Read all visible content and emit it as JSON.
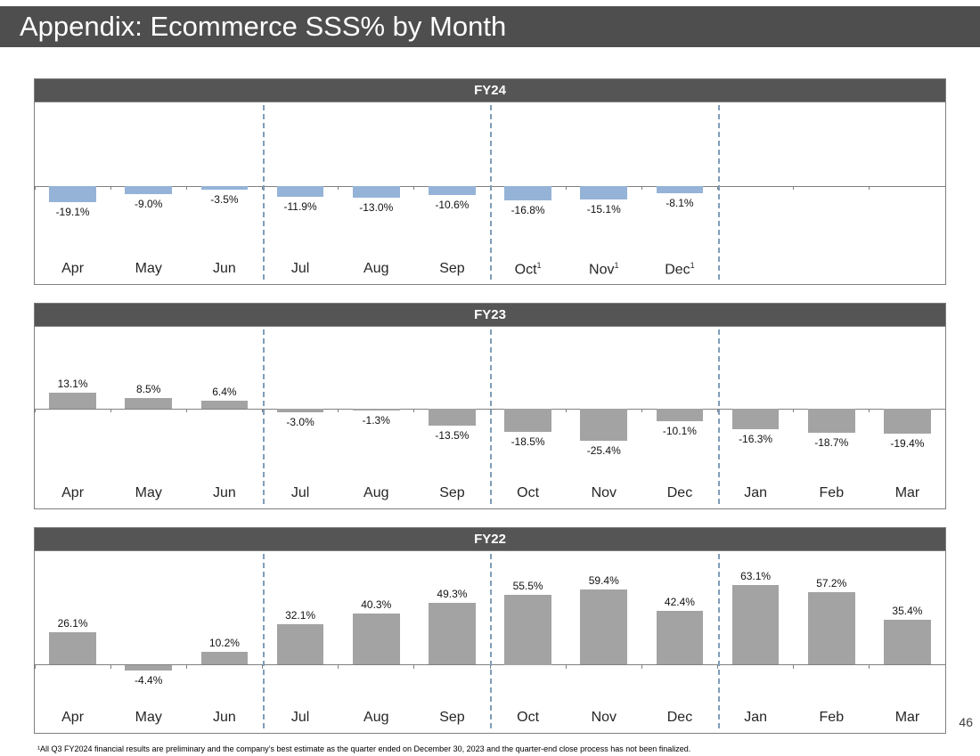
{
  "slide": {
    "title": "Appendix: Ecommerce SSS% by Month",
    "page_number": "46",
    "footnote": "¹All Q3 FY2024 financial results are preliminary and the company’s best estimate as the quarter ended on December 30, 2023 and the quarter-end close process has not been finalized."
  },
  "colors": {
    "header_bg": "#4E4E4E",
    "panel_title_bg": "#555555",
    "fy24_bar": "#95B3D7",
    "gray_bar": "#A3A3A3",
    "axis_line": "#808080",
    "quarter_separator": "#7F9DB9"
  },
  "chart_data": [
    {
      "type": "bar",
      "title": "FY24",
      "categories": [
        "Apr",
        "May",
        "Jun",
        "Jul",
        "Aug",
        "Sep",
        "Oct",
        "Nov",
        "Dec"
      ],
      "category_superscripts": [
        "",
        "",
        "",
        "",
        "",
        "",
        "1",
        "1",
        "1"
      ],
      "values": [
        -19.1,
        -9.0,
        -3.5,
        -11.9,
        -13.0,
        -10.6,
        -16.8,
        -15.1,
        -8.1
      ],
      "labels": [
        "-19.1%",
        "-9.0%",
        "-3.5%",
        "-11.9%",
        "-13.0%",
        "-10.6%",
        "-16.8%",
        "-15.1%",
        "-8.1%"
      ],
      "bar_color": "#95B3D7",
      "slots": 12,
      "ylim": [
        -80,
        100
      ],
      "quarter_separators_after": [
        3,
        6,
        9
      ],
      "grid": false,
      "legend": false,
      "data_labels": true,
      "ylabel": "",
      "xlabel": ""
    },
    {
      "type": "bar",
      "title": "FY23",
      "categories": [
        "Apr",
        "May",
        "Jun",
        "Jul",
        "Aug",
        "Sep",
        "Oct",
        "Nov",
        "Dec",
        "Jan",
        "Feb",
        "Mar"
      ],
      "category_superscripts": [
        "",
        "",
        "",
        "",
        "",
        "",
        "",
        "",
        "",
        "",
        "",
        ""
      ],
      "values": [
        13.1,
        8.5,
        6.4,
        -3.0,
        -1.3,
        -13.5,
        -18.5,
        -25.4,
        -10.1,
        -16.3,
        -18.7,
        -19.4
      ],
      "labels": [
        "13.1%",
        "8.5%",
        "6.4%",
        "-3.0%",
        "-1.3%",
        "-13.5%",
        "-18.5%",
        "-25.4%",
        "-10.1%",
        "-16.3%",
        "-18.7%",
        "-19.4%"
      ],
      "bar_color": "#A3A3A3",
      "slots": 12,
      "ylim": [
        -55,
        65
      ],
      "quarter_separators_after": [
        3,
        6,
        9
      ],
      "grid": false,
      "legend": false,
      "data_labels": true,
      "ylabel": "",
      "xlabel": ""
    },
    {
      "type": "bar",
      "title": "FY22",
      "categories": [
        "Apr",
        "May",
        "Jun",
        "Jul",
        "Aug",
        "Sep",
        "Oct",
        "Nov",
        "Dec",
        "Jan",
        "Feb",
        "Mar"
      ],
      "category_superscripts": [
        "",
        "",
        "",
        "",
        "",
        "",
        "",
        "",
        "",
        "",
        "",
        ""
      ],
      "values": [
        26.1,
        -4.4,
        10.2,
        32.1,
        40.3,
        49.3,
        55.5,
        59.4,
        42.4,
        63.1,
        57.2,
        35.4
      ],
      "labels": [
        "26.1%",
        "-4.4%",
        "10.2%",
        "32.1%",
        "40.3%",
        "49.3%",
        "55.5%",
        "59.4%",
        "42.4%",
        "63.1%",
        "57.2%",
        "35.4%"
      ],
      "bar_color": "#A3A3A3",
      "slots": 12,
      "ylim": [
        -30,
        90
      ],
      "quarter_separators_after": [
        3,
        6,
        9
      ],
      "grid": false,
      "legend": false,
      "data_labels": true,
      "ylabel": "",
      "xlabel": ""
    }
  ]
}
